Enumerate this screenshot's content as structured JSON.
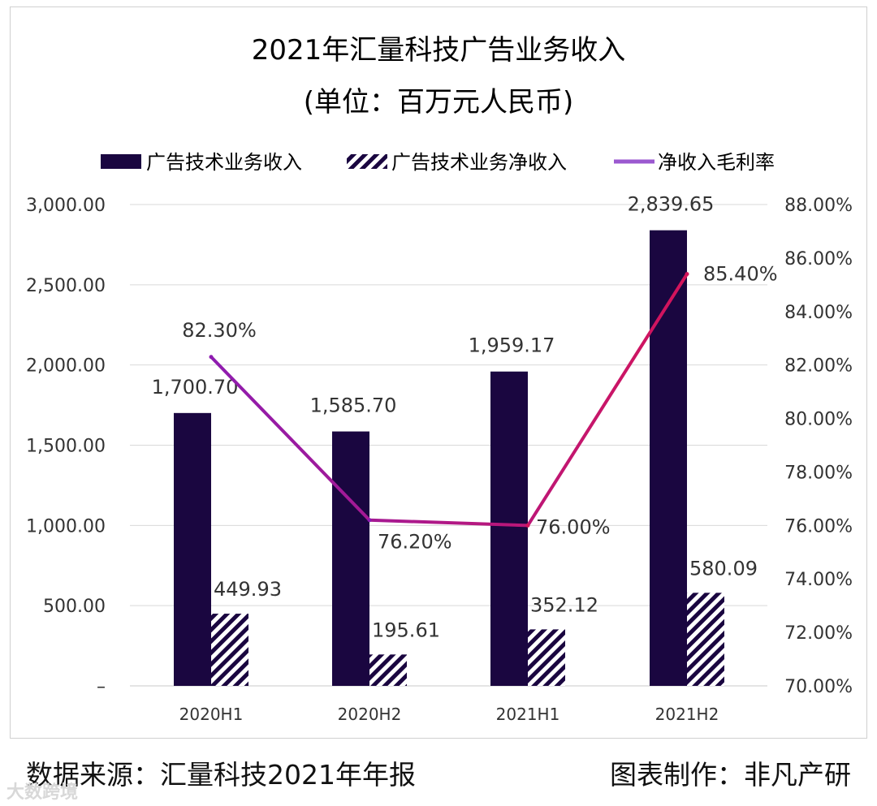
{
  "chart_data": {
    "type": "bar",
    "title": "2021年汇量科技广告业务收入",
    "subtitle": "(单位：百万元人民币)",
    "categories": [
      "2020H1",
      "2020H2",
      "2021H1",
      "2021H2"
    ],
    "series": [
      {
        "name": "广告技术业务收入",
        "type": "bar",
        "axis": "left",
        "values": [
          1700.7,
          1585.7,
          1959.17,
          2839.65
        ],
        "labels": [
          "1,700.70",
          "1,585.70",
          "1,959.17",
          "2,839.65"
        ],
        "color": "#1a0640"
      },
      {
        "name": "广告技术业务净收入",
        "type": "bar",
        "axis": "left",
        "pattern": "hatched",
        "values": [
          449.93,
          195.61,
          352.12,
          580.09
        ],
        "labels": [
          "449.93",
          "195.61",
          "352.12",
          "580.09"
        ],
        "color": "#1a0640"
      },
      {
        "name": "净收入毛利率",
        "type": "line",
        "axis": "right",
        "values": [
          82.3,
          76.2,
          76.0,
          85.4
        ],
        "labels": [
          "82.30%",
          "76.20%",
          "76.00%",
          "85.40%"
        ],
        "color_start": "#8e1cb0",
        "color_end": "#d4145a"
      }
    ],
    "left_axis": {
      "range": [
        0,
        3000
      ],
      "ticks": [
        "–",
        "500.00",
        "1,000.00",
        "1,500.00",
        "2,000.00",
        "2,500.00",
        "3,000.00"
      ]
    },
    "right_axis": {
      "range": [
        70,
        88
      ],
      "ticks": [
        "70.00%",
        "72.00%",
        "74.00%",
        "76.00%",
        "78.00%",
        "80.00%",
        "82.00%",
        "84.00%",
        "86.00%",
        "88.00%"
      ]
    },
    "grid": true,
    "legend_position": "top"
  },
  "footer": {
    "source": "数据来源：汇量科技2021年年报",
    "credit": "图表制作：非凡产研"
  },
  "watermark": "大数跨境"
}
